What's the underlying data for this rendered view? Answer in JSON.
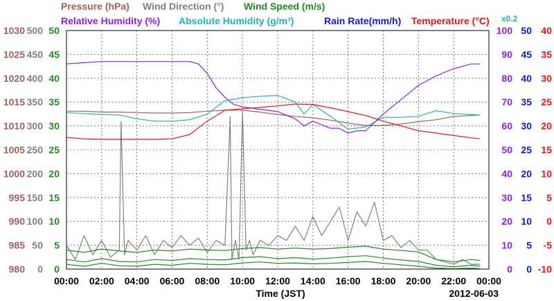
{
  "chart_data": {
    "type": "line",
    "date_label": "2012-06-03",
    "x_axis": {
      "label": "Time (JST)",
      "ticks": [
        "00:00",
        "02:00",
        "04:00",
        "06:00",
        "08:00",
        "10:00",
        "12:00",
        "14:00",
        "16:00",
        "18:00",
        "20:00",
        "22:00",
        "00:00"
      ],
      "range_hours": [
        0,
        24
      ]
    },
    "legend": {
      "line1": [
        {
          "label": "Pressure (hPa)",
          "color": "#a0605a"
        },
        {
          "label": "Wind Direction (°)",
          "color": "#808080"
        },
        {
          "label": "Wind Speed (m/s)",
          "color": "#1e8c1e"
        }
      ],
      "line2": [
        {
          "label": "Relative Humidity (%)",
          "color": "#8c1ee6"
        },
        {
          "label": "Absolute Humidity (g/m³)",
          "color": "#1eb4b4"
        },
        {
          "label": "Rain Rate(mm/h)",
          "color": "#1414dc"
        },
        {
          "label": "Temperature (°C)",
          "color": "#e61414"
        }
      ],
      "multiplier": {
        "label": "x0.2",
        "color": "#1eb4b4"
      }
    },
    "y_axes": {
      "pressure": {
        "color": "#a0605a",
        "range": [
          980,
          1030
        ],
        "ticks": [
          "1030",
          "1025",
          "1020",
          "1015",
          "1010",
          "1005",
          "1000",
          "995",
          "990",
          "985",
          "980"
        ]
      },
      "wind_direction": {
        "color": "#808080",
        "range": [
          0,
          500
        ],
        "ticks": [
          "500",
          "450",
          "400",
          "350",
          "300",
          "250",
          "200",
          "150",
          "100",
          "50",
          "0"
        ]
      },
      "wind_speed": {
        "color": "#1e8c1e",
        "range": [
          0,
          50
        ],
        "ticks": [
          "50",
          "45",
          "40",
          "35",
          "30",
          "25",
          "20",
          "15",
          "10",
          "5",
          "0"
        ]
      },
      "relative_humidity": {
        "color": "#8c1ee6",
        "range": [
          0,
          100
        ],
        "ticks": [
          "100",
          "90",
          "80",
          "70",
          "60",
          "50",
          "40",
          "30",
          "20",
          "10",
          "0"
        ]
      },
      "rain_rate": {
        "color": "#1414dc",
        "range": [
          0,
          50
        ],
        "ticks": [
          "50",
          "45",
          "40",
          "35",
          "30",
          "25",
          "20",
          "15",
          "10",
          "5",
          "0"
        ]
      },
      "temperature": {
        "color": "#e61414",
        "range": [
          -10,
          40
        ],
        "ticks": [
          "40",
          "35",
          "30",
          "25",
          "20",
          "15",
          "10",
          "5",
          "0",
          "-5",
          "-10"
        ]
      }
    },
    "grid": true,
    "series": [
      {
        "name": "Pressure (hPa)",
        "axis": "pressure",
        "color": "#a0605a",
        "x": [
          0,
          1,
          2,
          3,
          4,
          5,
          6,
          7,
          8,
          9,
          10,
          11,
          12,
          13,
          14,
          15,
          16,
          17,
          18,
          19,
          20,
          21,
          22,
          23.5
        ],
        "y": [
          1013.1,
          1013.1,
          1012.9,
          1012.9,
          1012.8,
          1012.7,
          1012.7,
          1012.8,
          1013.1,
          1013.3,
          1013.3,
          1012.9,
          1012.4,
          1012.0,
          1011.7,
          1011.2,
          1010.6,
          1010.1,
          1010.1,
          1010.4,
          1010.9,
          1011.3,
          1012.0,
          1012.3
        ]
      },
      {
        "name": "Relative Humidity (%)",
        "axis": "relative_humidity",
        "color": "#8c1ee6",
        "x": [
          0,
          1,
          2,
          3,
          4,
          5,
          6,
          7,
          7.5,
          8,
          8.5,
          9,
          9.5,
          10,
          11,
          12,
          13,
          13.5,
          14,
          15,
          15.5,
          16,
          16.5,
          17,
          18,
          19,
          20,
          21,
          22,
          23,
          23.5
        ],
        "y": [
          86,
          86.5,
          87,
          87,
          87,
          87,
          87,
          87,
          86,
          82,
          76,
          72,
          69,
          68,
          67,
          66,
          63,
          60,
          62,
          59,
          59,
          57,
          58,
          58,
          65,
          71,
          77,
          81,
          84,
          86,
          86
        ]
      },
      {
        "name": "Absolute Humidity (g/m³)",
        "axis": "rain_rate",
        "color": "#1eb4b4",
        "x": [
          0,
          1,
          2,
          3,
          4,
          5,
          6,
          7,
          8,
          9,
          9.5,
          10,
          11,
          12,
          13,
          13.5,
          14,
          15,
          16,
          17,
          18,
          19,
          20,
          21,
          22,
          23,
          23.5
        ],
        "y": [
          32.8,
          32.6,
          32.4,
          32.3,
          31.5,
          31.0,
          31.0,
          31.3,
          32.5,
          35.3,
          35.6,
          35.9,
          36.2,
          36.4,
          35.0,
          32.5,
          34.5,
          32.0,
          29.3,
          29.8,
          31.8,
          31.8,
          32.0,
          33.2,
          32.6,
          32.4,
          32.3
        ]
      },
      {
        "name": "Temperature (°C)",
        "axis": "temperature",
        "color": "#e61414",
        "x": [
          0,
          1,
          2,
          3,
          4,
          5,
          6,
          7,
          8,
          9,
          10,
          11,
          12,
          13,
          14,
          15,
          16,
          17,
          18,
          19,
          20,
          21,
          22,
          23,
          23.5
        ],
        "y": [
          17.6,
          17.3,
          17.2,
          17.2,
          17.2,
          17.2,
          17.3,
          18.2,
          21.0,
          23.3,
          23.6,
          23.9,
          24.2,
          24.6,
          24.5,
          23.8,
          23.0,
          22.2,
          21.0,
          20.0,
          19.0,
          18.5,
          18.0,
          17.5,
          17.3
        ]
      },
      {
        "name": "Wind Direction (°)",
        "axis": "wind_direction",
        "color": "#808080",
        "x": [
          0,
          0.5,
          1,
          1.5,
          2,
          2.5,
          3,
          3.1,
          3.3,
          3.5,
          4,
          4.5,
          5,
          5.5,
          6,
          6.5,
          7,
          7.5,
          8,
          8.5,
          9,
          9.3,
          9.4,
          9.6,
          9.8,
          10,
          10.2,
          10.4,
          10.6,
          11,
          11.5,
          12,
          12.5,
          13,
          13.5,
          14,
          14.5,
          15,
          15.5,
          16,
          16.5,
          17,
          17.5,
          18,
          18.5,
          19,
          19.5,
          20,
          20.5,
          21,
          21.5,
          22,
          22.5,
          23,
          23.5
        ],
        "y": [
          50,
          20,
          70,
          30,
          60,
          25,
          40,
          310,
          30,
          60,
          40,
          70,
          30,
          60,
          45,
          70,
          50,
          65,
          35,
          60,
          50,
          320,
          20,
          60,
          20,
          330,
          40,
          60,
          30,
          60,
          50,
          70,
          60,
          90,
          60,
          110,
          70,
          100,
          130,
          60,
          120,
          90,
          140,
          60,
          70,
          45,
          60,
          40,
          40,
          20,
          15,
          10,
          20,
          10,
          10
        ]
      },
      {
        "name": "Wind Speed (m/s)",
        "axis": "wind_speed",
        "color": "#1e8c1e",
        "x": [
          0,
          1,
          2,
          3,
          4,
          5,
          6,
          7,
          8,
          9,
          10,
          11,
          12,
          13,
          14,
          15,
          16,
          17,
          18,
          19,
          20,
          21,
          22,
          23,
          23.5
        ],
        "y": [
          4.0,
          3.5,
          4.2,
          3.8,
          3.5,
          4.0,
          3.8,
          4.2,
          4.0,
          3.9,
          4.3,
          4.5,
          4.2,
          4.4,
          4.2,
          4.3,
          4.6,
          4.8,
          4.2,
          3.9,
          3.6,
          2.0,
          1.5,
          2.0,
          1.8
        ]
      },
      {
        "name": "Wind Speed (m/s)",
        "axis": "wind_speed",
        "color": "#1e8c1e",
        "x": [
          0,
          1,
          2,
          3,
          4,
          5,
          6,
          7,
          8,
          9,
          10,
          11,
          12,
          13,
          14,
          15,
          16,
          17,
          18,
          19,
          20,
          21,
          22,
          23,
          23.5
        ],
        "y": [
          2.0,
          1.5,
          2.2,
          1.6,
          1.5,
          2.0,
          1.8,
          2.2,
          2.0,
          1.9,
          2.4,
          2.6,
          2.2,
          2.4,
          2.1,
          2.3,
          2.6,
          2.8,
          2.3,
          1.9,
          1.6,
          0.8,
          0.5,
          0.8,
          0.6
        ]
      },
      {
        "name": "Wind Speed (m/s)",
        "axis": "wind_speed",
        "color": "#1e8c1e",
        "x": [
          0,
          1,
          2,
          3,
          4,
          5,
          6,
          7,
          8,
          9,
          10,
          11,
          12,
          13,
          14,
          15,
          16,
          17,
          18,
          19,
          20,
          21,
          22,
          23,
          23.5
        ],
        "y": [
          1.0,
          0.6,
          1.2,
          0.7,
          0.6,
          1.0,
          0.8,
          1.2,
          1.0,
          0.9,
          1.3,
          1.5,
          1.2,
          1.3,
          1.1,
          1.2,
          1.4,
          1.6,
          1.2,
          0.9,
          0.6,
          0.2,
          0.1,
          0.2,
          0.1
        ]
      }
    ]
  }
}
